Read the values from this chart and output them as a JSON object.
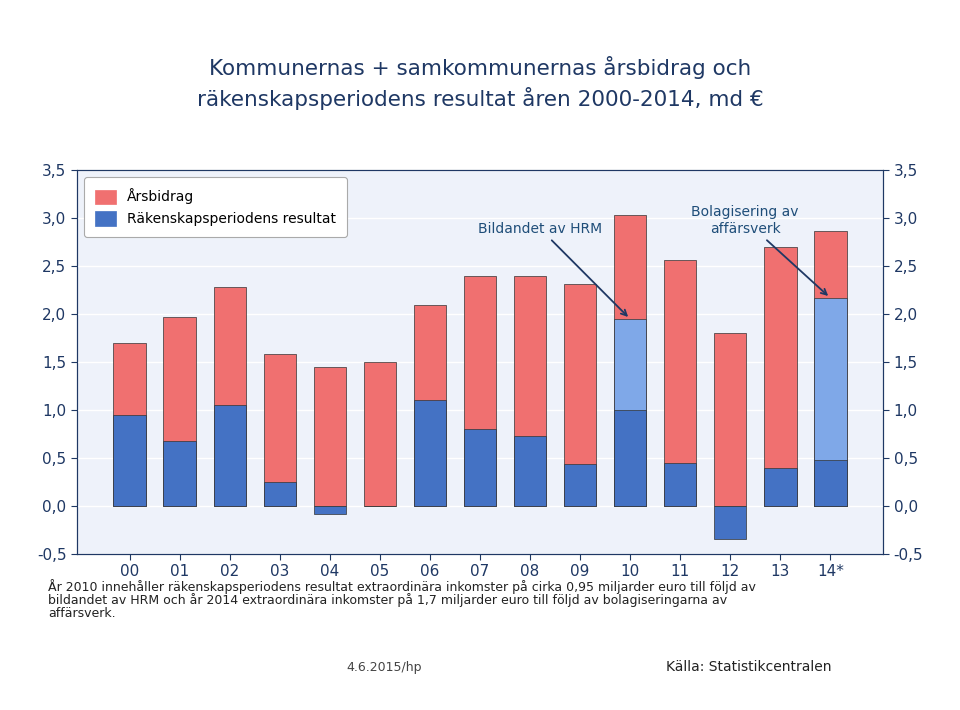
{
  "title": "Kommunernas + samkommunernas årsbidrag och\nräkenskapsperiodens resultat åren 2000-2014, md €",
  "categories": [
    "00",
    "01",
    "02",
    "03",
    "04",
    "05",
    "06",
    "07",
    "08",
    "09",
    "10",
    "11",
    "12",
    "13",
    "14*"
  ],
  "arsbidrag": [
    1.7,
    1.97,
    2.28,
    1.58,
    1.45,
    1.5,
    2.1,
    2.4,
    2.4,
    2.32,
    3.03,
    2.57,
    1.8,
    2.7,
    2.87
  ],
  "resultat": [
    0.95,
    0.68,
    1.05,
    0.25,
    -0.08,
    0.0,
    1.1,
    0.8,
    0.73,
    0.44,
    1.0,
    0.45,
    -0.35,
    0.4,
    0.48
  ],
  "resultat_special_10": 1.95,
  "resultat_special_14": 2.17,
  "arsbidrag_color": "#F07070",
  "resultat_color": "#4472C4",
  "resultat_special_color": "#7FA8E8",
  "ylim": [
    -0.5,
    3.5
  ],
  "yticks": [
    -0.5,
    0.0,
    0.5,
    1.0,
    1.5,
    2.0,
    2.5,
    3.0,
    3.5
  ],
  "legend_arsbidrag": "Årsbidrag",
  "legend_resultat": "Räkenskapsperiodens resultat",
  "annotation_hrm": "Bildandet av HRM",
  "annotation_bolag": "Bolagisering av\naffärsverk",
  "footnote_line1": "År 2010 innehåller räkenskapsperiodens resultat extraordinära inkomster på cirka 0,95 miljarder euro till följd av",
  "footnote_line2": "bildandet av HRM och år 2014 extraordinära inkomster på 1,7 miljarder euro till följd av bolagiseringarna av",
  "footnote_line3": "affärsverk.",
  "date_text": "4.6.2015/hp",
  "source_text": "Källa: Statistikcentralen",
  "bg_color": "#FFFFFF",
  "plot_bg_color": "#EEF2FA",
  "grid_color": "#FFFFFF",
  "title_color": "#1F3864",
  "axis_label_color": "#1F3864",
  "annotation_color": "#1F4E79",
  "arrow_color": "#1F3864",
  "bar_edge_color": "#333333"
}
